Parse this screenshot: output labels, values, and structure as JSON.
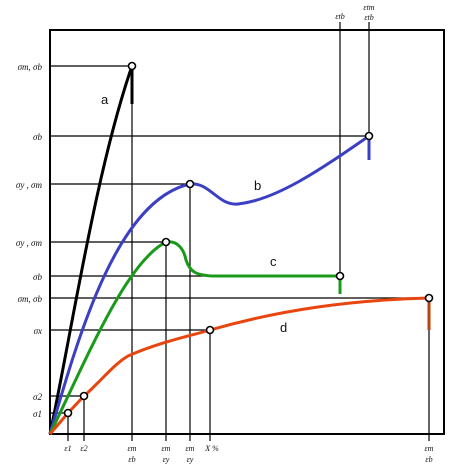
{
  "curves": [
    {
      "id": "a",
      "label": "a",
      "color": "#000000"
    },
    {
      "id": "b",
      "label": "b",
      "color": "#3b3fc4"
    },
    {
      "id": "c",
      "label": "c",
      "color": "#1a9a1a"
    },
    {
      "id": "d",
      "label": "d",
      "color": "#e8450f"
    }
  ],
  "y_labels": {
    "sm_sb_a": "σm, σb",
    "sb_b": "σb",
    "sy_sm_b": "σy , σm",
    "sy_sm_c": "σy , σm",
    "sb_c": "σb",
    "sm_sb_d": "σm, σb",
    "sx": "σx",
    "s2": "σ2",
    "s1": "σ1"
  },
  "x_labels": {
    "e1": "ε1",
    "e2": "ε2",
    "em_eb_a_top": "εm",
    "em_eb_a_bot": "εb",
    "em_ey_c_top": "εm",
    "em_ey_c_bot": "εy",
    "em_ey_b_top": "εm",
    "em_ey_b_bot": "εy",
    "x_percent": "X %",
    "em_eb_d_top": "εm",
    "em_eb_d_bot": "εb"
  },
  "top_labels": {
    "etb_c": "εtb",
    "etm_b": "εtm",
    "etb_b": "εtb"
  }
}
